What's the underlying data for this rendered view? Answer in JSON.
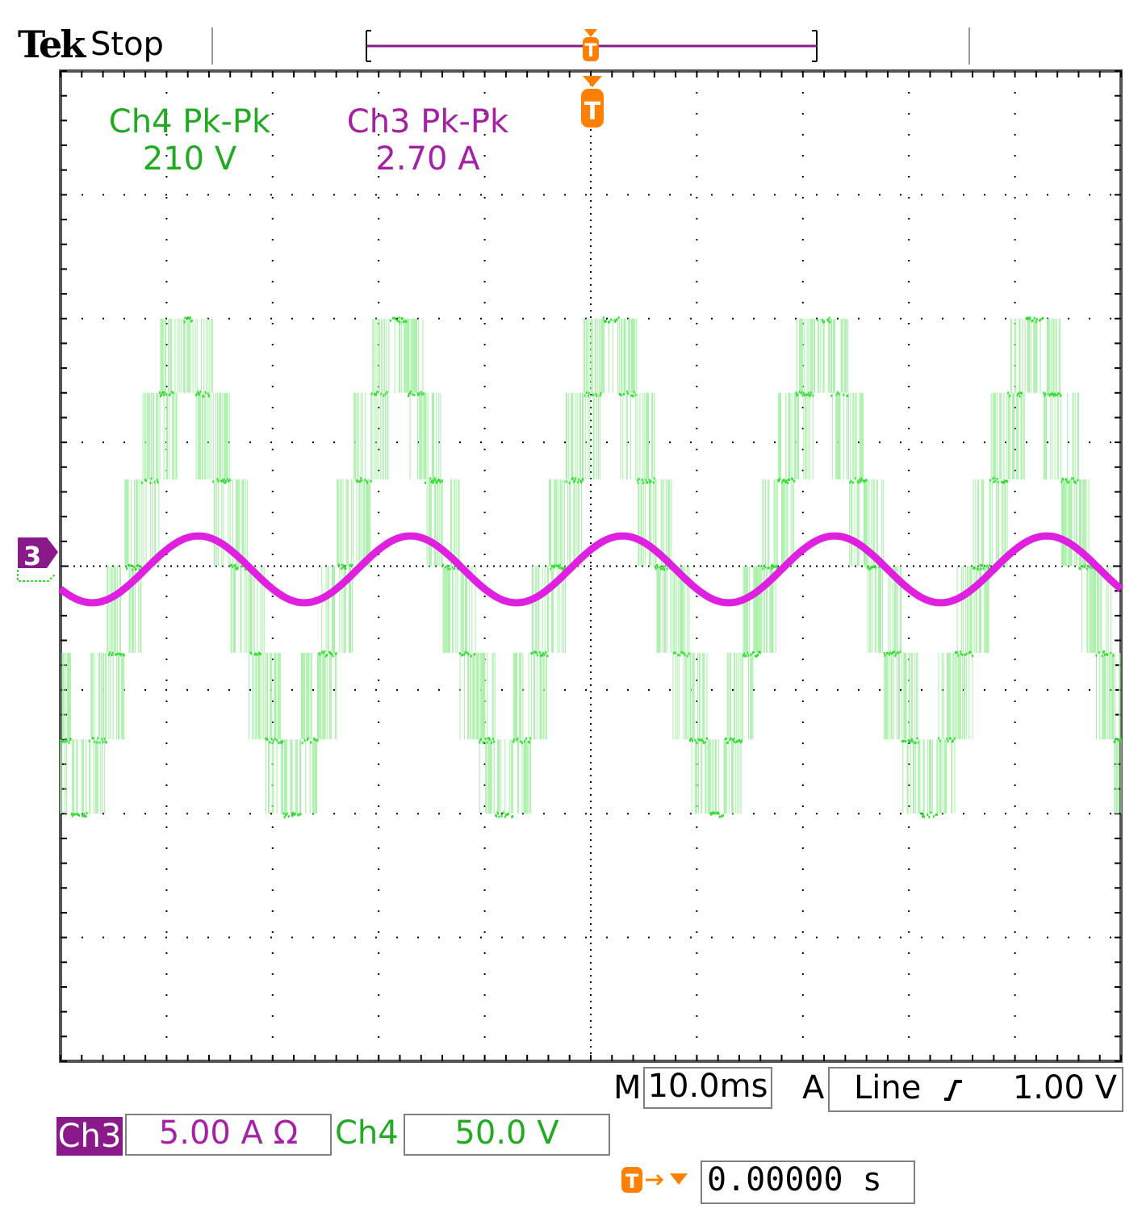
{
  "header": {
    "brand": "Tek",
    "acq_state": "Stop",
    "trigger_marker": "T"
  },
  "measurements": [
    {
      "label": "Ch4 Pk-Pk",
      "value": "210 V",
      "color": "#22aa22"
    },
    {
      "label": "Ch3 Pk-Pk",
      "value": "2.70 A",
      "color": "#a520a5"
    }
  ],
  "channel_marker": "3",
  "readouts": {
    "timebase_prefix": "M",
    "timebase": "10.0ms",
    "trigger_source_prefix": "A",
    "trigger_source": "Line",
    "trigger_slope_icon": "rising-edge-icon",
    "trigger_level": "1.00 V",
    "ch3_label": "Ch3",
    "ch3_scale": "5.00 A Ω",
    "ch4_label": "Ch4",
    "ch4_scale": "50.0 V",
    "trigger_position": "0.00000 s"
  },
  "colors": {
    "ch3": "#e020e0",
    "ch4": "#33dd33",
    "ch4_envelope": "#a8f0a8",
    "trigger": "#ff8000",
    "grid": "#000000"
  },
  "chart_data": {
    "type": "line",
    "title": "",
    "xlabel": "",
    "ylabel": "",
    "grid": true,
    "x_divisions": 10,
    "y_divisions": 8,
    "xlim_ms": [
      -50,
      50
    ],
    "series": [
      {
        "name": "Ch4",
        "units": "V",
        "volts_per_div": 50.0,
        "description_levels_div": [
          -2.0,
          -1.4,
          -0.7,
          0,
          0.7,
          1.4,
          2.0
        ],
        "stepped_waveform_period_ms": 20,
        "phase_ms": -44,
        "pk_pk": 210
      },
      {
        "name": "Ch3",
        "units": "A",
        "amps_per_div": 5.0,
        "sine_amplitude_A": 1.35,
        "period_ms": 20,
        "phase_ms": -42,
        "pk_pk": 2.7
      }
    ]
  }
}
